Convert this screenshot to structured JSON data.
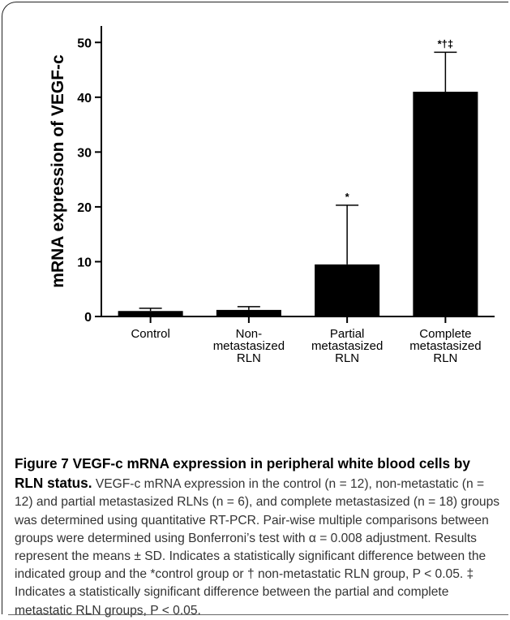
{
  "chart_data": {
    "type": "bar",
    "categories": [
      "Control",
      "Non-\nmetastasized\nRLN",
      "Partial\nmetastasized\nRLN",
      "Complete\nmetastasized\nRLN"
    ],
    "values": [
      1.0,
      1.2,
      9.5,
      41.0
    ],
    "errors": [
      0.5,
      0.6,
      10.8,
      7.2
    ],
    "annotations": [
      "",
      "",
      "*",
      "*†‡"
    ],
    "ylabel": "mRNA expression of VEGF-c",
    "ylim": [
      0,
      53
    ],
    "yticks": [
      0,
      10,
      20,
      30,
      40,
      50
    ],
    "bar_color": "#000000",
    "grid": false
  },
  "caption": {
    "title": "Figure 7 VEGF-c mRNA expression in peripheral white blood cells by RLN status.",
    "body": "VEGF-c mRNA expression in the control (n = 12), non-metastatic (n = 12) and partial metastasized RLNs (n = 6), and complete metastasized (n = 18) groups was determined using quantitative RT-PCR. Pair-wise multiple comparisons between groups were determined using Bonferroni’s test with α = 0.008 adjustment. Results represent the means ± SD. Indicates a statistically significant difference between the indicated group and the *control group or † non-metastatic RLN group, P < 0.05. ‡ Indicates a statistically significant difference between the partial and complete metastatic RLN groups, P < 0.05."
  }
}
